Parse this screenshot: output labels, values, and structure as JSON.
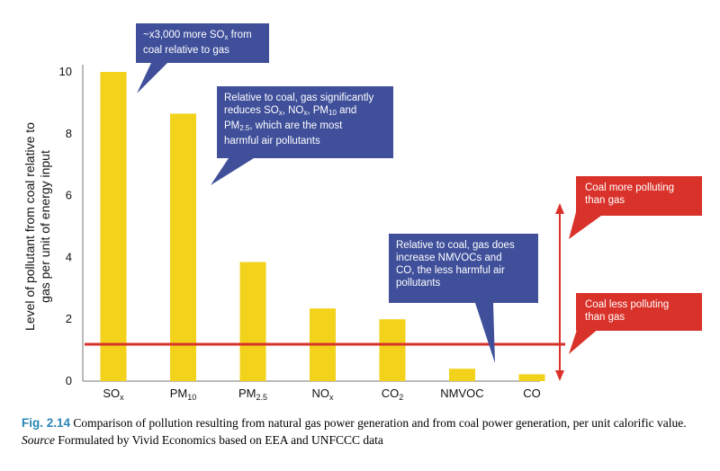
{
  "chart_data": {
    "type": "bar",
    "categories": [
      "SO",
      "PM",
      "PM",
      "NO",
      "CO",
      "NMVOC",
      "CO"
    ],
    "category_subscripts": [
      "x",
      "10",
      "2.5",
      "x",
      "2",
      "",
      ""
    ],
    "values": [
      10.0,
      8.65,
      3.85,
      2.35,
      2.0,
      0.4,
      0.22
    ],
    "ylabel": "Level of pollutant from coal relative to gas per unit of energy input",
    "yticks": [
      0,
      2,
      4,
      6,
      8,
      10
    ],
    "ylim": [
      0,
      10.8
    ],
    "reference_line": 1.0,
    "grid": false,
    "colors": {
      "bar": "#f2d21b",
      "line": "#d9322a",
      "callout": "#3f4f9a",
      "red": "#d9322a",
      "caption_label": "#2a86b3"
    }
  },
  "callouts": {
    "so2": {
      "line1_pre": "~x3,000 more SO",
      "line1_sub": "x",
      "line1_post": " from",
      "line2": "coal relative to gas"
    },
    "pm": {
      "line1": "Relative to coal, gas significantly",
      "line2_a": "reduces SO",
      "line2_a_sub": "x",
      "line2_b": ", NO",
      "line2_b_sub": "x",
      "line2_c": ", PM",
      "line2_c_sub": "10",
      "line2_d": " and",
      "line3_a": "PM",
      "line3_a_sub": "2.5",
      "line3_b": ", which are the most",
      "line4": "harmful air pollutants"
    },
    "nmvoc": {
      "line1": "Relative to coal, gas does",
      "line2": "increase NMVOCs and",
      "line3": "CO, the less harmful air",
      "line4": "pollutants"
    }
  },
  "annotations": {
    "more": {
      "line1": "Coal more polluting",
      "line2": "than gas"
    },
    "less": {
      "line1": "Coal less polluting",
      "line2": "than gas"
    }
  },
  "caption": {
    "label": "Fig. 2.14",
    "text": " Comparison of pollution resulting from natural gas power generation and from coal power generation, per unit calorific value. ",
    "source_label": "Source",
    "source_text": " Formulated by Vivid Economics based on EEA and UNFCCC data"
  }
}
